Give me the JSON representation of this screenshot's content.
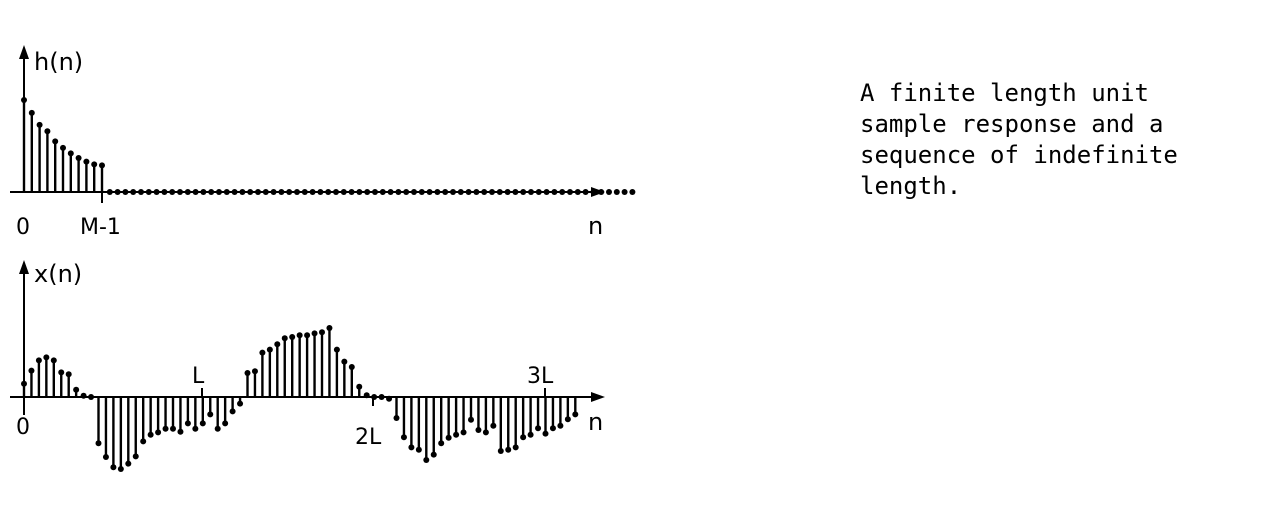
{
  "figure": {
    "top_plot": {
      "ylabel": "h(n)",
      "xlabel": "n",
      "ticks": [
        "0",
        "M-1"
      ]
    },
    "bottom_plot": {
      "ylabel": "x(n)",
      "xlabel": "n",
      "ticks_below": [
        "0",
        "2L"
      ],
      "ticks_above": [
        "L",
        "3L"
      ]
    }
  },
  "caption": {
    "lines": [
      "A finite length unit",
      "sample response and a",
      "sequence of indefinite",
      "length."
    ]
  },
  "chart_data": [
    {
      "type": "stem",
      "title": "",
      "ylabel": "h(n)",
      "xlabel": "n",
      "x_ticks": {
        "0": "0",
        "10": "M-1"
      },
      "values": [
        1.0,
        0.86,
        0.73,
        0.66,
        0.55,
        0.48,
        0.42,
        0.37,
        0.33,
        0.3,
        0.29,
        0,
        0,
        0,
        0,
        0,
        0,
        0,
        0,
        0,
        0,
        0,
        0,
        0,
        0,
        0,
        0,
        0,
        0,
        0,
        0,
        0,
        0,
        0,
        0,
        0,
        0,
        0,
        0,
        0,
        0,
        0,
        0,
        0,
        0,
        0,
        0,
        0,
        0,
        0,
        0,
        0,
        0,
        0,
        0,
        0,
        0,
        0,
        0,
        0,
        0,
        0,
        0,
        0,
        0,
        0,
        0,
        0,
        0,
        0,
        0,
        0,
        0,
        0,
        0,
        0,
        0,
        0,
        0
      ]
    },
    {
      "type": "stem",
      "title": "",
      "ylabel": "x(n)",
      "xlabel": "n",
      "x_ticks": {
        "0": "0",
        "23": "L",
        "46": "2L",
        "69": "3L"
      },
      "values": [
        0.22,
        0.44,
        0.61,
        0.66,
        0.61,
        0.41,
        0.38,
        0.12,
        0.02,
        0,
        -0.77,
        -1.0,
        -1.17,
        -1.2,
        -1.11,
        -0.99,
        -0.74,
        -0.63,
        -0.59,
        -0.53,
        -0.53,
        -0.58,
        -0.44,
        -0.53,
        -0.44,
        -0.29,
        -0.53,
        -0.44,
        -0.24,
        -0.11,
        0.4,
        0.43,
        0.74,
        0.79,
        0.88,
        0.98,
        1.0,
        1.03,
        1.03,
        1.06,
        1.08,
        1.15,
        0.79,
        0.59,
        0.5,
        0.17,
        0.03,
        0,
        0,
        -0.03,
        -0.35,
        -0.67,
        -0.84,
        -0.88,
        -1.05,
        -0.96,
        -0.77,
        -0.68,
        -0.63,
        -0.59,
        -0.38,
        -0.55,
        -0.59,
        -0.48,
        -0.9,
        -0.88,
        -0.84,
        -0.67,
        -0.63,
        -0.52,
        -0.61,
        -0.52,
        -0.48,
        -0.37,
        -0.29
      ]
    }
  ]
}
